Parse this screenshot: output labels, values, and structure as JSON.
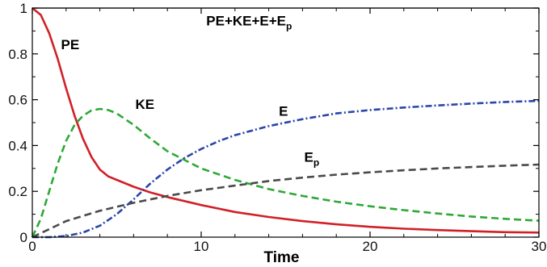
{
  "chart_data": {
    "type": "line",
    "xlabel": "Time",
    "ylabel": "",
    "xlim": [
      0,
      30
    ],
    "ylim": [
      0,
      1
    ],
    "xticks": [
      0,
      10,
      20,
      30
    ],
    "yticks": [
      0,
      0.2,
      0.4,
      0.6,
      0.8,
      1
    ],
    "xtick_labels": [
      "0",
      "10",
      "20",
      "30"
    ],
    "ytick_labels": [
      "0",
      "0.2",
      "0.4",
      "0.6",
      "0.8",
      "1"
    ],
    "grid": false,
    "legend": "none",
    "series": [
      {
        "name": "PE+KE+E+Ep",
        "color": "#333333",
        "style": "solid",
        "x": [
          0,
          5,
          10,
          15,
          20,
          25,
          30
        ],
        "y": [
          1,
          1,
          1,
          1,
          1,
          1,
          1
        ]
      },
      {
        "name": "PE",
        "color": "#d12027",
        "style": "solid",
        "x": [
          0,
          0.5,
          1,
          1.5,
          2,
          2.5,
          3,
          3.5,
          4,
          4.5,
          5,
          6,
          7,
          8,
          10,
          12,
          14,
          16,
          18,
          20,
          22,
          24,
          26,
          28,
          30
        ],
        "y": [
          1.0,
          0.97,
          0.89,
          0.78,
          0.65,
          0.53,
          0.43,
          0.35,
          0.295,
          0.265,
          0.25,
          0.22,
          0.195,
          0.175,
          0.14,
          0.11,
          0.088,
          0.07,
          0.056,
          0.045,
          0.037,
          0.031,
          0.026,
          0.022,
          0.02
        ]
      },
      {
        "name": "KE",
        "color": "#2ea836",
        "style": "dashed",
        "x": [
          0,
          0.5,
          1,
          1.5,
          2,
          2.5,
          3,
          3.5,
          4,
          4.5,
          5,
          6,
          7,
          8,
          10,
          12,
          14,
          16,
          18,
          20,
          22,
          24,
          26,
          28,
          30
        ],
        "y": [
          0,
          0.08,
          0.2,
          0.32,
          0.42,
          0.49,
          0.53,
          0.553,
          0.56,
          0.555,
          0.54,
          0.49,
          0.43,
          0.375,
          0.3,
          0.25,
          0.21,
          0.18,
          0.155,
          0.135,
          0.118,
          0.103,
          0.09,
          0.08,
          0.072
        ]
      },
      {
        "name": "E",
        "color": "#2b46a8",
        "style": "dashdot",
        "x": [
          0,
          1,
          2,
          3,
          4,
          5,
          6,
          7,
          8,
          9,
          10,
          11,
          12,
          14,
          16,
          18,
          20,
          22,
          24,
          26,
          28,
          30
        ],
        "y": [
          0,
          0,
          0.005,
          0.02,
          0.05,
          0.1,
          0.165,
          0.235,
          0.295,
          0.345,
          0.385,
          0.418,
          0.445,
          0.485,
          0.515,
          0.54,
          0.555,
          0.566,
          0.575,
          0.583,
          0.59,
          0.595
        ]
      },
      {
        "name": "Ep",
        "color": "#4a4a4a",
        "style": "dashed",
        "x": [
          0,
          1,
          2,
          4,
          6,
          8,
          10,
          12,
          14,
          16,
          18,
          20,
          22,
          24,
          26,
          28,
          30
        ],
        "y": [
          0,
          0.035,
          0.07,
          0.115,
          0.15,
          0.18,
          0.205,
          0.225,
          0.245,
          0.26,
          0.273,
          0.283,
          0.292,
          0.3,
          0.306,
          0.312,
          0.317
        ]
      }
    ],
    "annotations": [
      {
        "text": "PE",
        "x": 1.7,
        "y": 0.82
      },
      {
        "text": "KE",
        "x": 6.1,
        "y": 0.56
      },
      {
        "text": "E",
        "x": 14.6,
        "y": 0.53
      },
      {
        "text": "E",
        "sub": "p",
        "x": 16.1,
        "y": 0.33
      },
      {
        "text": "PE+KE+E+E",
        "sub": "p",
        "x": 10.3,
        "y": 0.925
      }
    ]
  }
}
